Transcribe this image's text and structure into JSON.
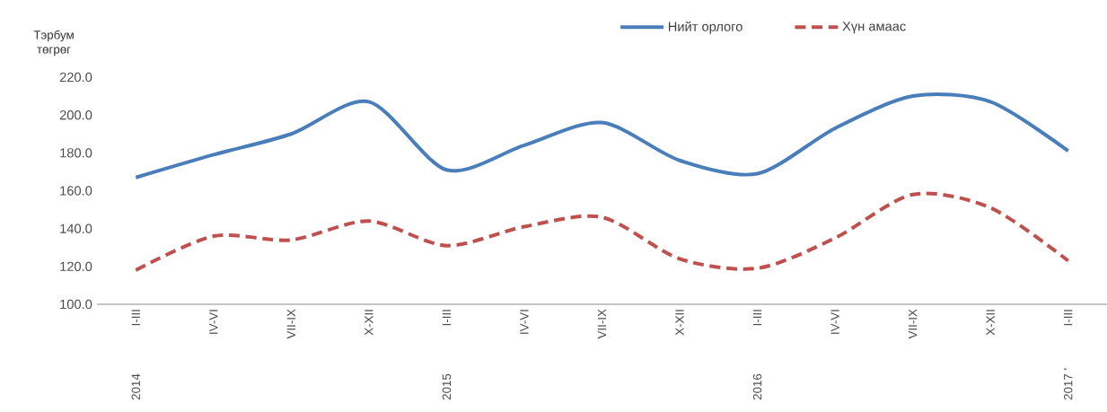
{
  "chart_data": {
    "type": "line",
    "ylabel": "Тэрбум төгрөг",
    "categories": [
      "I-III",
      "IV-VI",
      "VII-IX",
      "X-XII",
      "I-III",
      "IV-VI",
      "VII-IX",
      "X-XII",
      "I-III",
      "IV-VI",
      "VII-IX",
      "X-XII",
      "I-III"
    ],
    "series": [
      {
        "name": "Нийт орлого",
        "color": "#4a7ebb",
        "line_style": "solid",
        "values": [
          167,
          179,
          190,
          207,
          171,
          184,
          196,
          176,
          169,
          193,
          210,
          207,
          181
        ]
      },
      {
        "name": "Хүн амаас",
        "color": "#c0504d",
        "line_style": "dashed",
        "values": [
          118,
          136,
          134,
          144,
          131,
          141,
          146,
          124,
          119,
          135,
          158,
          151,
          123
        ]
      }
    ],
    "annotations": [
      "2014",
      "2015",
      "2016",
      "2017 '"
    ],
    "ylim": [
      100,
      220
    ],
    "yticks": [
      {
        "value": 100,
        "label": "100.0"
      },
      {
        "value": 120,
        "label": "120.0"
      },
      {
        "value": 140,
        "label": "140.0"
      },
      {
        "value": 160,
        "label": "160.0"
      },
      {
        "value": 180,
        "label": "180.0"
      },
      {
        "value": 200,
        "label": "200.0"
      },
      {
        "value": 220,
        "label": "220.0"
      }
    ],
    "legend": "top",
    "grid": false,
    "marker": "none"
  }
}
